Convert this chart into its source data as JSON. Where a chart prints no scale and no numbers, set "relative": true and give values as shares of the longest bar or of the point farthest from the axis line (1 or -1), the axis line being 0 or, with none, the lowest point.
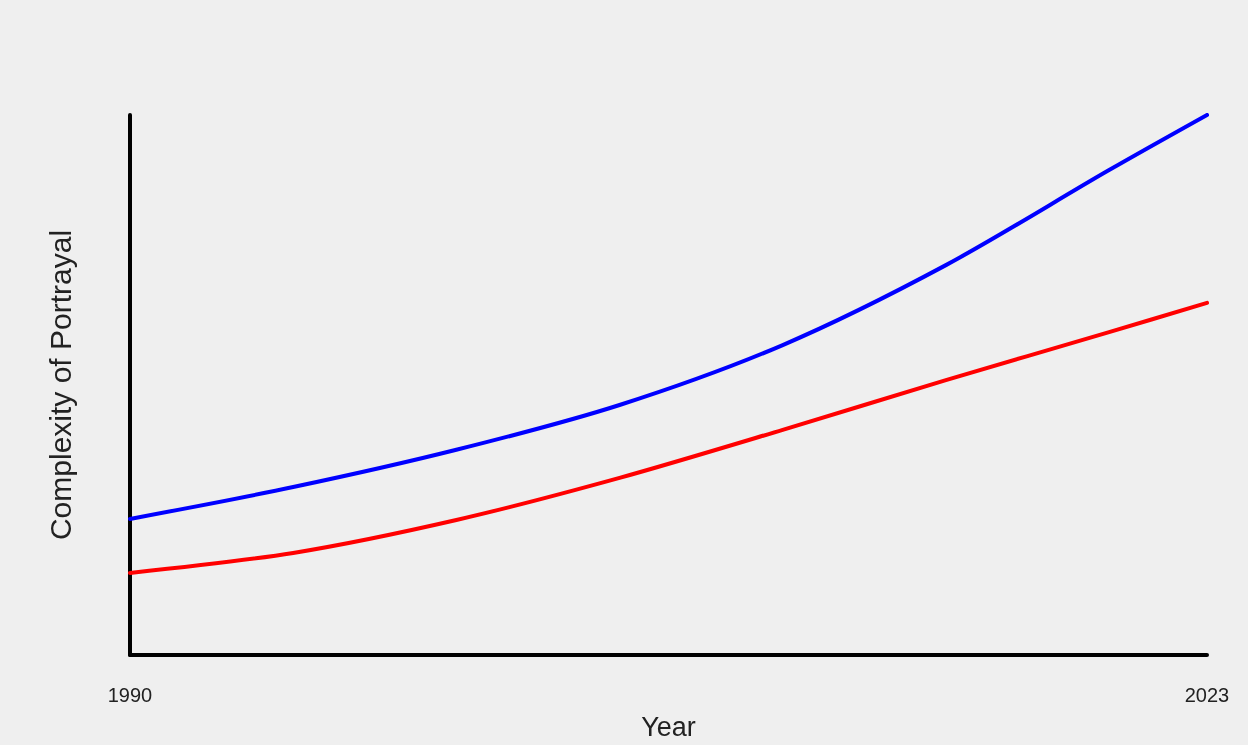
{
  "chart_data": {
    "type": "line",
    "xlabel": "Year",
    "ylabel": "Complexity of Portrayal",
    "relative": true,
    "x": [
      1990,
      1995,
      2000,
      2005,
      2010,
      2015,
      2020,
      2023
    ],
    "xlim": [
      1990,
      2023
    ],
    "xticks": [
      1990,
      2023
    ],
    "grid": false,
    "marker": "none",
    "line_style": "solid",
    "series": [
      {
        "color": "#0000ff",
        "values": [
          0.252,
          0.311,
          0.38,
          0.463,
          0.574,
          0.722,
          0.898,
          1
        ]
      },
      {
        "color": "#ff0000",
        "values": [
          0.152,
          0.189,
          0.25,
          0.328,
          0.417,
          0.509,
          0.598,
          0.652
        ]
      }
    ]
  }
}
